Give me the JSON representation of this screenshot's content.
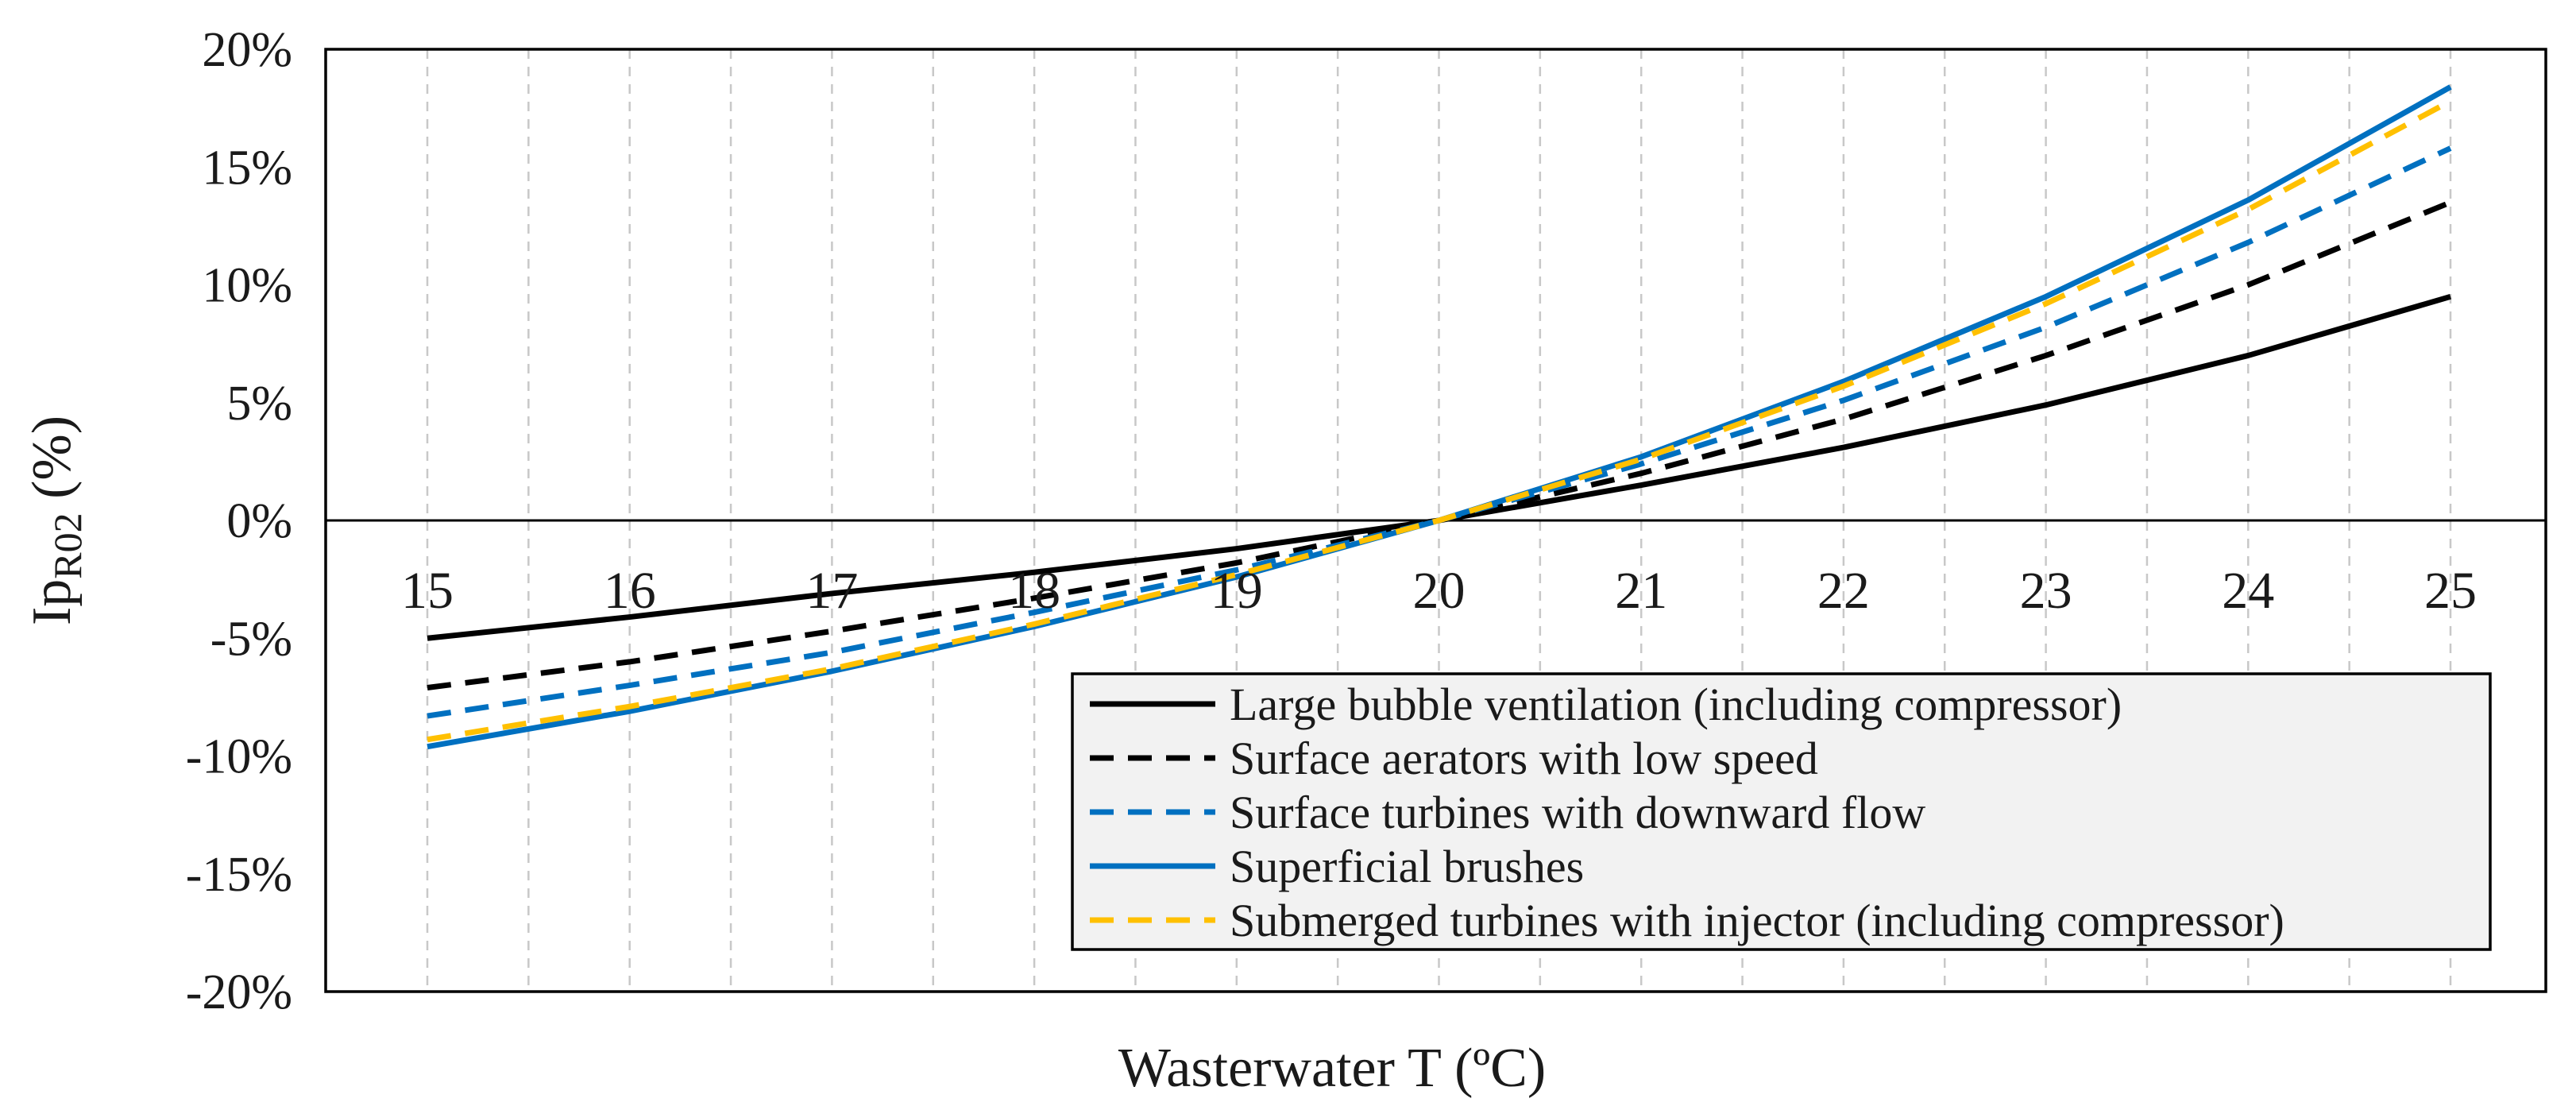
{
  "chart_data": {
    "type": "line",
    "title": "",
    "xlabel": "Wasterwater T (ºC)",
    "ylabel": {
      "main": "Ip",
      "subscript": "R02",
      "suffix": " (%)"
    },
    "xlim": [
      15,
      25
    ],
    "ylim": [
      -20,
      20
    ],
    "x_ticks": [
      15,
      16,
      17,
      18,
      19,
      20,
      21,
      22,
      23,
      24,
      25
    ],
    "x_tick_labels": [
      "15",
      "16",
      "17",
      "18",
      "19",
      "20",
      "21",
      "22",
      "23",
      "24",
      "25"
    ],
    "y_ticks": [
      20,
      15,
      10,
      5,
      0,
      -5,
      -10,
      -15,
      -20
    ],
    "y_tick_labels": [
      "20%",
      "15%",
      "10%",
      "5%",
      "0%",
      "-5%",
      "-10%",
      "-15%",
      "-20%"
    ],
    "x_minor_gridlines": [
      15.5,
      16.5,
      17.5,
      18.5,
      19.5,
      20.5,
      21.5,
      22.5,
      23.5,
      24.5
    ],
    "grid": {
      "vertical": true,
      "style": "dashed"
    },
    "x": [
      15,
      16,
      17,
      18,
      19,
      20,
      21,
      22,
      23,
      24,
      25
    ],
    "series": [
      {
        "name": "Large bubble ventilation (including compressor)",
        "color": "#000000",
        "dash": "solid",
        "values": [
          -5.0,
          -4.1,
          -3.1,
          -2.2,
          -1.2,
          0.0,
          1.5,
          3.1,
          4.9,
          7.0,
          9.5
        ]
      },
      {
        "name": "Surface aerators with low speed",
        "color": "#000000",
        "dash": "dashed",
        "values": [
          -7.1,
          -6.0,
          -4.7,
          -3.3,
          -1.8,
          0.0,
          2.0,
          4.3,
          7.0,
          10.0,
          13.5
        ]
      },
      {
        "name": "Surface turbines with downward flow",
        "color": "#0070C0",
        "dash": "dashed",
        "values": [
          -8.3,
          -7.0,
          -5.6,
          -3.9,
          -2.1,
          0.0,
          2.4,
          5.1,
          8.2,
          11.8,
          15.8
        ]
      },
      {
        "name": "Superficial brushes",
        "color": "#0070C0",
        "dash": "solid",
        "values": [
          -9.6,
          -8.1,
          -6.4,
          -4.5,
          -2.4,
          0.0,
          2.7,
          5.9,
          9.5,
          13.6,
          18.4
        ]
      },
      {
        "name": "Submerged turbines with injector (including compressor)",
        "color": "#FFC000",
        "dash": "dashed",
        "values": [
          -9.3,
          -7.9,
          -6.3,
          -4.4,
          -2.3,
          0.0,
          2.6,
          5.7,
          9.2,
          13.2,
          17.8
        ]
      }
    ],
    "legend": {
      "placement": "bottom-right"
    }
  }
}
